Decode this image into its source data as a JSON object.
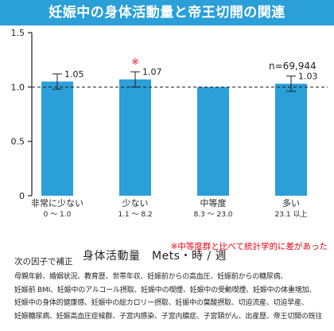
{
  "title": "妊娠中の身体活動量と帝王切開の関連",
  "sample_size": "n=69,944",
  "significance_marker": "※",
  "footnote": "※中等度群と比べて統計学的に差があった",
  "adjustment": {
    "heading": "次の因子で補正",
    "lines": [
      "母親年齢、婚姻状況、教育歴、世帯年収、妊娠前からの高血圧、妊娠前からの糖尿病、",
      "妊娠前 BMI、妊娠中のアルコール摂取、妊娠中の喫煙、妊娠中の受動喫煙、妊娠中の体重増加、",
      "妊娠中の身体的健康感、妊娠中の総カロリー摂取、妊娠中の葉酸摂取、切迫流産、切迫早産、",
      "妊娠糖尿病、妊娠高血圧症候群、子宮内感染、子宮内膜症、子宮頸がん、出産歴、帝王切開の既往"
    ]
  },
  "colors": {
    "title_bg": "#2a9fd8",
    "bar": "#2a9fd8",
    "marker": "#e60012"
  },
  "chart_data": {
    "type": "bar",
    "title": "妊娠中の身体活動量と帝王切開の関連",
    "xlabel": "身体活動量　Mets・時 / 週",
    "ylabel": "",
    "ylim": [
      0,
      1.5
    ],
    "yticks": [
      0,
      0.5,
      1.0,
      1.5
    ],
    "ytick_labels": [
      "0",
      "0.5",
      "1.0",
      "1.5"
    ],
    "reference_line": 1.0,
    "categories": [
      "非常に少ない",
      "少ない",
      "中等度",
      "多い"
    ],
    "category_ranges": [
      "0 〜 1.0",
      "1.1 〜 8.2",
      "8.3 〜 23.0",
      "23.1 以上"
    ],
    "values": [
      1.05,
      1.07,
      1.0,
      1.03
    ],
    "value_labels": [
      "1.05",
      "1.07",
      "",
      "1.03"
    ],
    "error_low": [
      0.98,
      1.0,
      null,
      0.96
    ],
    "error_high": [
      1.12,
      1.14,
      null,
      1.1
    ],
    "significant": [
      false,
      true,
      false,
      false
    ]
  }
}
